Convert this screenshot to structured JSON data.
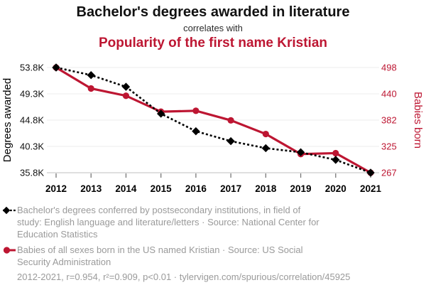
{
  "header": {
    "title": "Bachelor's degrees awarded in literature",
    "subtitle": "correlates with",
    "title2": "Popularity of the first name Kristian"
  },
  "colors": {
    "accent_red": "#bd1632",
    "series_black": "#000000",
    "legend_gray": "#9a9a9a",
    "gridline": "#ececec"
  },
  "chart_data": {
    "type": "line",
    "x": [
      2012,
      2013,
      2014,
      2015,
      2016,
      2017,
      2018,
      2019,
      2020,
      2021
    ],
    "series": [
      {
        "name": "Bachelor's degrees conferred in English language and literature/letters",
        "axis": "left",
        "color": "#000000",
        "style": "dashed",
        "marker": "diamond",
        "values": [
          53800,
          52500,
          50500,
          45900,
          42900,
          41200,
          40000,
          39300,
          38000,
          35800
        ]
      },
      {
        "name": "Babies born in the US named Kristian",
        "axis": "right",
        "color": "#bd1632",
        "style": "solid",
        "marker": "circle",
        "values": [
          498,
          452,
          436,
          401,
          403,
          382,
          352,
          308,
          310,
          267
        ]
      }
    ],
    "left_axis": {
      "label": "Degrees awarded",
      "ticks": [
        "53.8K",
        "49.3K",
        "44.8K",
        "40.3K",
        "35.8K"
      ],
      "tick_values": [
        53800,
        49300,
        44800,
        40300,
        35800
      ],
      "min": 35800,
      "max": 53800
    },
    "right_axis": {
      "label": "Babies born",
      "ticks": [
        "498",
        "440",
        "382",
        "325",
        "267"
      ],
      "tick_values": [
        498,
        440,
        382,
        325,
        267
      ],
      "min": 267,
      "max": 498
    },
    "grid": "horizontal",
    "legend_position": "bottom"
  },
  "legend": {
    "items": [
      {
        "marker": "black-diamond-dashed",
        "lines": [
          "Bachelor's degrees conferred by postsecondary institutions, in field of",
          "study: English language and literature/letters · Source: National Center for",
          "Education Statistics"
        ]
      },
      {
        "marker": "red-circle-solid",
        "lines": [
          "Babies of all sexes born in the US named Kristian · Source: US Social",
          "Security Administration"
        ]
      }
    ],
    "footer": "2012-2021, r=0.954, r²=0.909, p<0.01 · tylervigen.com/spurious/correlation/45925"
  }
}
